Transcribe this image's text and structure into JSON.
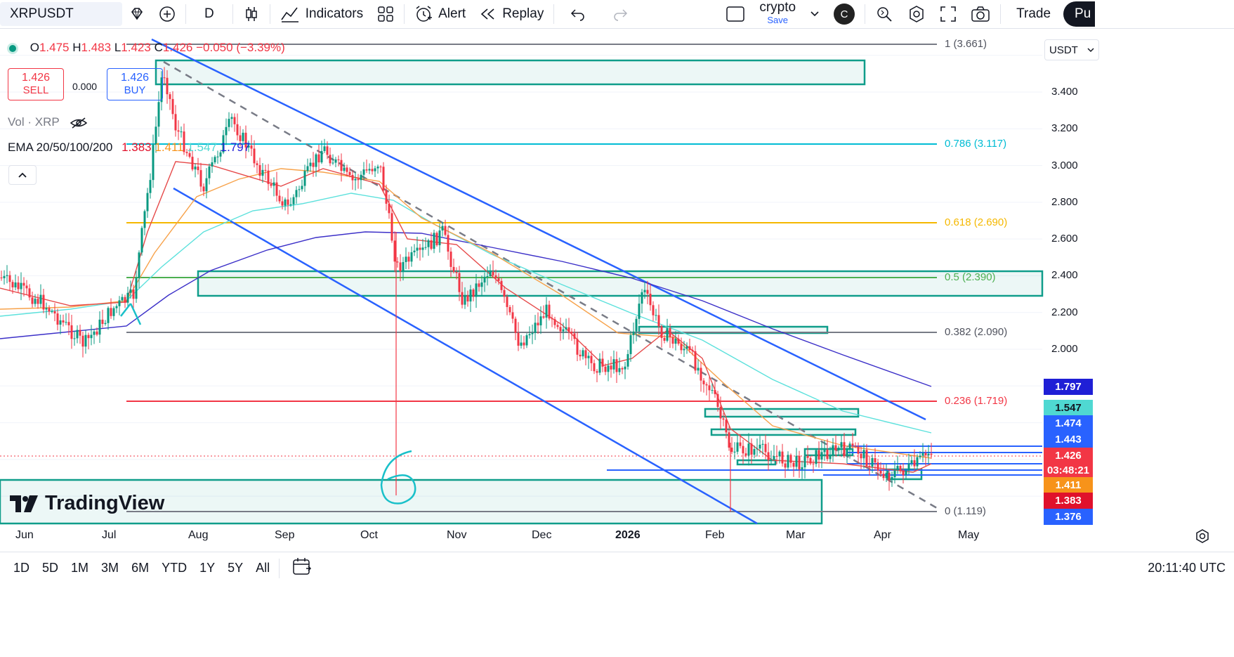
{
  "toolbar": {
    "symbol": "XRPUSDT",
    "interval": "D",
    "indicators": "Indicators",
    "alert": "Alert",
    "replay": "Replay",
    "layout_name": "crypto",
    "save": "Save",
    "avatar": "C",
    "trade": "Trade",
    "publish": "Pu"
  },
  "legend": {
    "o_label": "O",
    "o": "1.475",
    "h_label": "H",
    "h": "1.483",
    "l_label": "L",
    "l": "1.423",
    "c_label": "C",
    "c": "1.426",
    "change": "−0.050 (−3.39%)",
    "sell_price": "1.426",
    "sell": "SELL",
    "spread": "0.000",
    "buy_price": "1.426",
    "buy": "BUY",
    "vol": "Vol · XRP",
    "ema_label": "EMA 20/50/100/200",
    "ema20": "1.383",
    "ema50": "1.411",
    "ema100": "1.547",
    "ema200": "1.797"
  },
  "currency": "USDT",
  "price_ticks": [
    "3.400",
    "3.200",
    "3.000",
    "2.800",
    "2.600",
    "2.400",
    "2.200",
    "2.000"
  ],
  "price_labels": [
    {
      "value": "1.797",
      "color": "#1f1fd6"
    },
    {
      "value": "1.547",
      "color": "#4fd8d2"
    },
    {
      "value": "1.474",
      "color": "#2962ff"
    },
    {
      "value": "1.443",
      "color": "#2962ff"
    },
    {
      "value": "1.426",
      "color": "#f23645"
    },
    {
      "value": "03:48:21",
      "color": "#f23645"
    },
    {
      "value": "1.411",
      "color": "#f7931a"
    },
    {
      "value": "1.383",
      "color": "#e0112b"
    },
    {
      "value": "1.376",
      "color": "#2962ff"
    }
  ],
  "fib_levels": [
    {
      "label": "1 (3.661)",
      "color": "#787b86"
    },
    {
      "label": "0.786 (3.117)",
      "color": "#00bcd4"
    },
    {
      "label": "0.618 (2.690)",
      "color": "#f5b800"
    },
    {
      "label": "0.5 (2.390)",
      "color": "#4caf50"
    },
    {
      "label": "0.382 (2.090)",
      "color": "#787b86"
    },
    {
      "label": "0.236 (1.719)",
      "color": "#f23645"
    },
    {
      "label": "0 (1.119)",
      "color": "#787b86"
    }
  ],
  "x_labels": [
    "Jun",
    "Jul",
    "Aug",
    "Sep",
    "Oct",
    "Nov",
    "Dec",
    "2026",
    "Feb",
    "Mar",
    "Apr",
    "May"
  ],
  "annotation": "6",
  "logo": "TradingView",
  "ranges": [
    "1D",
    "5D",
    "1M",
    "3M",
    "6M",
    "YTD",
    "1Y",
    "5Y",
    "All"
  ],
  "clock": "20:11:40 UTC",
  "colors": {
    "up": "#089981",
    "down": "#f23645",
    "channel": "#2962ff",
    "zone": "#0f9d8a"
  }
}
